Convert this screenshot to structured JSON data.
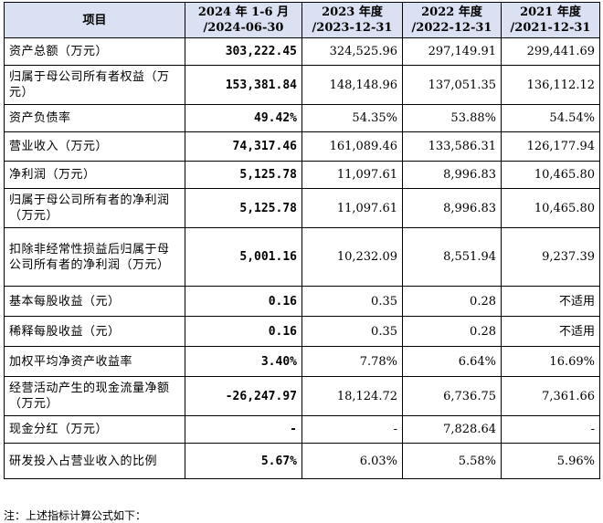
{
  "header": {
    "item": "项目",
    "col1": [
      "2024 年 1-6 月",
      "/2024-06-30"
    ],
    "col2": [
      "2023 年度",
      "/2023-12-31"
    ],
    "col3": [
      "2022 年度",
      "/2022-12-31"
    ],
    "col4": [
      "2021 年度",
      "/2021-12-31"
    ]
  },
  "rows": [
    {
      "label": "资产总额（万元）",
      "v1": "303,222.45",
      "v2": "324,525.96",
      "v3": "297,149.91",
      "v4": "299,441.69"
    },
    {
      "label": "归属于母公司所有者权益（万元）",
      "v1": "153,381.84",
      "v2": "148,148.96",
      "v3": "137,051.35",
      "v4": "136,112.12"
    },
    {
      "label": "资产负债率",
      "v1": "49.42%",
      "v2": "54.35%",
      "v3": "53.88%",
      "v4": "54.54%"
    },
    {
      "label": "营业收入（万元）",
      "v1": "74,317.46",
      "v2": "161,089.46",
      "v3": "133,586.31",
      "v4": "126,177.94"
    },
    {
      "label": "净利润（万元）",
      "v1": "5,125.78",
      "v2": "11,097.61",
      "v3": "8,996.83",
      "v4": "10,465.80"
    },
    {
      "label": "归属于母公司所有者的净利润（万元）",
      "v1": "5,125.78",
      "v2": "11,097.61",
      "v3": "8,996.83",
      "v4": "10,465.80"
    },
    {
      "label": "扣除非经常性损益后归属于母公司所有者的净利润（万元）",
      "v1": "5,001.16",
      "v2": "10,232.09",
      "v3": "8,551.94",
      "v4": "9,237.39"
    },
    {
      "label": "基本每股收益（元）",
      "v1": "0.16",
      "v2": "0.35",
      "v3": "0.28",
      "v4": "不适用"
    },
    {
      "label": "稀释每股收益（元）",
      "v1": "0.16",
      "v2": "0.35",
      "v3": "0.28",
      "v4": "不适用"
    },
    {
      "label": "加权平均净资产收益率",
      "v1": "3.40%",
      "v2": "7.78%",
      "v3": "6.64%",
      "v4": "16.69%"
    },
    {
      "label": "经营活动产生的现金流量净额（万元）",
      "v1": "-26,247.97",
      "v2": "18,124.72",
      "v3": "6,736.75",
      "v4": "7,361.66"
    },
    {
      "label": "现金分红（万元）",
      "v1": "-",
      "v2": "-",
      "v3": "7,828.64",
      "v4": "-"
    },
    {
      "label": "研发投入占营业收入的比例",
      "v1": "5.67%",
      "v2": "6.03%",
      "v3": "5.58%",
      "v4": "5.96%"
    }
  ],
  "footnote": "注：上述指标计算公式如下："
}
